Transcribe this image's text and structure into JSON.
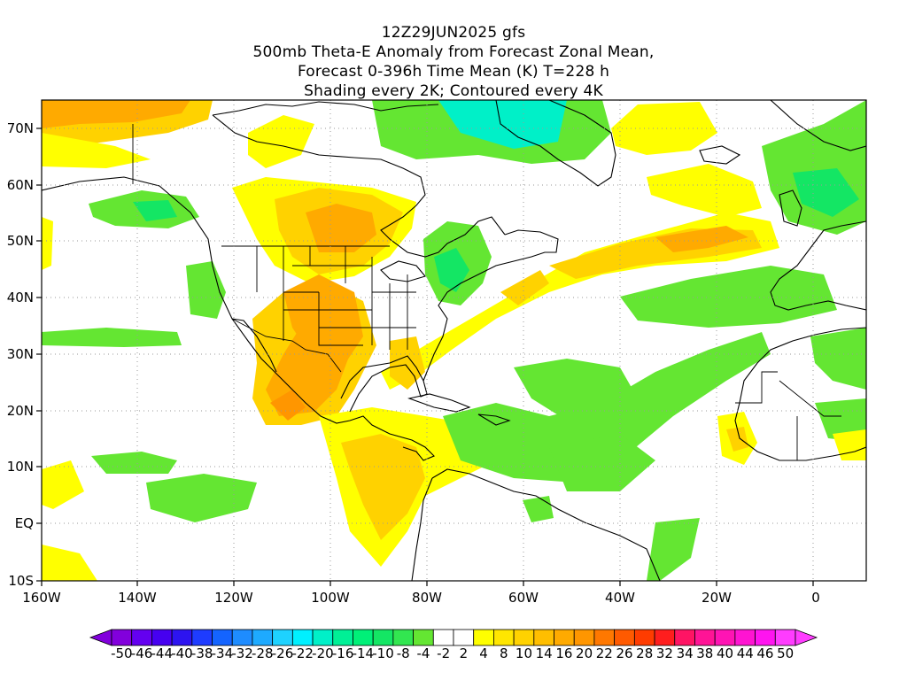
{
  "title": {
    "line1": "12Z29JUN2025 gfs",
    "line2": "500mb Theta-E Anomaly from Forecast Zonal Mean,",
    "line3": "Forecast 0-396h Time Mean (K) T=228 h",
    "line4": "Shading every 2K; Contoured every 4K"
  },
  "axes": {
    "lon_labels": [
      "160W",
      "140W",
      "120W",
      "100W",
      "80W",
      "60W",
      "40W",
      "20W",
      "0"
    ],
    "lat_labels": [
      "70N",
      "60N",
      "50N",
      "40N",
      "30N",
      "20N",
      "10N",
      "EQ",
      "10S"
    ]
  },
  "colorbar": {
    "labels": [
      "-50",
      "-46",
      "-44",
      "-40",
      "-38",
      "-34",
      "-32",
      "-28",
      "-26",
      "-22",
      "-20",
      "-16",
      "-14",
      "-10",
      "-8",
      "-4",
      "-2",
      "2",
      "4",
      "8",
      "10",
      "14",
      "16",
      "20",
      "22",
      "26",
      "28",
      "32",
      "34",
      "38",
      "40",
      "44",
      "46",
      "50"
    ],
    "colors": [
      "#8200dc",
      "#6400f0",
      "#4600f0",
      "#2d14f0",
      "#1e3cff",
      "#1464ff",
      "#1e8cff",
      "#1eaaff",
      "#1ed2ff",
      "#00f0ff",
      "#00f0c8",
      "#00f096",
      "#00f078",
      "#14e664",
      "#32e650",
      "#64e632",
      "#ffffff",
      "#ffffff",
      "#ffff00",
      "#ffe600",
      "#ffd200",
      "#ffbe00",
      "#ffaa00",
      "#ff9600",
      "#ff7800",
      "#ff5a00",
      "#ff3c00",
      "#ff1e1e",
      "#ff1464",
      "#ff1496",
      "#ff14b4",
      "#ff14d2",
      "#ff14f0",
      "#ff3cff"
    ]
  },
  "anomaly_colors": {
    "ocean_white": "#ffffff",
    "green": "#64e632",
    "teal": "#14e664",
    "cyan": "#00f0c8",
    "yellow": "#ffff00",
    "gold": "#ffd200",
    "orange": "#ffaa00",
    "dark_orange": "#ff9600"
  }
}
